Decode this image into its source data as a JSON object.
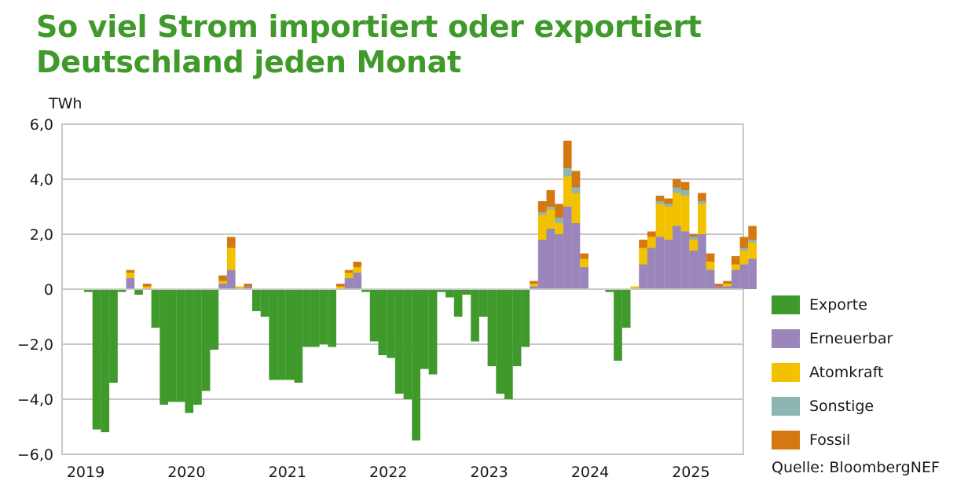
{
  "title_lines": [
    "So viel Strom importiert oder exportiert",
    "Deutschland jeden Monat"
  ],
  "source": "Quelle: BloombergNEF",
  "chart_data": {
    "type": "bar",
    "stacked": true,
    "unit": "TWh",
    "ylim": [
      -6,
      6
    ],
    "yticks": [
      6,
      4,
      2,
      0,
      -2,
      -4,
      -6
    ],
    "ytick_labels": [
      "6,0",
      "4,0",
      "2,0",
      "0",
      "−2,0",
      "−4,0",
      "−6,0"
    ],
    "x_start": "2019-01",
    "years": [
      "2019",
      "2020",
      "2021",
      "2022",
      "2023",
      "2024",
      "2025"
    ],
    "grid": true,
    "legend_position": "right",
    "colors": {
      "Exporte": "#3f9a2b",
      "Erneuerbar": "#9a86bb",
      "Atomkraft": "#f2c200",
      "Sonstige": "#8db5b1",
      "Fossil": "#d47911"
    },
    "series": [
      {
        "name": "Exporte",
        "values": [
          -0.1,
          -5.1,
          -5.2,
          -3.4,
          -0.1,
          0,
          -0.2,
          0,
          -1.4,
          -4.2,
          -4.1,
          -4.1,
          -4.5,
          -4.2,
          -3.7,
          -2.2,
          0,
          0,
          0,
          0,
          -0.8,
          -1.0,
          -3.3,
          -3.3,
          -3.3,
          -3.4,
          -2.1,
          -2.1,
          -2.0,
          -2.1,
          0,
          0,
          0,
          -0.1,
          -1.9,
          -2.4,
          -2.5,
          -3.8,
          -4.0,
          -5.5,
          -2.9,
          -3.1,
          -0.1,
          -0.3,
          -1.0,
          -0.2,
          -1.9,
          -1.0,
          -2.8,
          -3.8,
          -4.0,
          -2.8,
          -2.1,
          0,
          0,
          0,
          0,
          0,
          0,
          0,
          0,
          0,
          -0.1,
          -2.6,
          -1.4,
          0,
          0,
          0,
          0,
          0,
          0,
          0,
          0,
          0,
          0,
          0,
          0,
          0,
          0,
          0,
          0,
          0,
          0,
          0,
          0,
          0
        ]
      },
      {
        "name": "Erneuerbar",
        "values": [
          0,
          0,
          0,
          0,
          0,
          0.4,
          0,
          0,
          0,
          0,
          0,
          0,
          0,
          0,
          0,
          0,
          0.2,
          0.7,
          0,
          0.1,
          0,
          0,
          0,
          0,
          0,
          0,
          0,
          0,
          0,
          0,
          0,
          0.4,
          0.6,
          0,
          0,
          0,
          0,
          0,
          0,
          0,
          0,
          0,
          0,
          0,
          0,
          0,
          0,
          0,
          0,
          0,
          0,
          0,
          0,
          0.1,
          1.8,
          2.2,
          2.0,
          3.0,
          2.4,
          0.8,
          0,
          0,
          0,
          0,
          0,
          0,
          0.9,
          1.5,
          1.9,
          1.8,
          2.3,
          2.1,
          1.4,
          2.0,
          0.7,
          0.1,
          0.1,
          0.7,
          0.9,
          1.1
        ]
      },
      {
        "name": "Atomkraft",
        "values": [
          0,
          0,
          0,
          0,
          0,
          0.2,
          0,
          0.1,
          0,
          0,
          0,
          0,
          0,
          0,
          0,
          0,
          0.1,
          0.8,
          0.1,
          0,
          0,
          0,
          0,
          0,
          0,
          0,
          0,
          0,
          0,
          0,
          0.1,
          0.2,
          0.2,
          0,
          0,
          0,
          0,
          0,
          0,
          0,
          0,
          0,
          0,
          0,
          0,
          0,
          0,
          0,
          0,
          0,
          0,
          0,
          0,
          0.1,
          0.9,
          0.7,
          0.4,
          1.1,
          1.1,
          0.3,
          0,
          0,
          0,
          0,
          0,
          0.1,
          0.6,
          0.4,
          1.2,
          1.2,
          1.2,
          1.3,
          0.4,
          1.1,
          0.3,
          0,
          0.1,
          0.2,
          0.5,
          0.6
        ]
      },
      {
        "name": "Sonstige",
        "values": [
          0,
          0,
          0,
          0,
          0,
          0,
          0,
          0,
          0,
          0,
          0,
          0,
          0,
          0,
          0,
          0,
          0,
          0,
          0,
          0,
          0,
          0,
          0,
          0,
          0,
          0,
          0,
          0,
          0,
          0,
          0,
          0,
          0,
          0,
          0,
          0,
          0,
          0,
          0,
          0,
          0,
          0,
          0,
          0,
          0,
          0,
          0,
          0,
          0,
          0,
          0,
          0,
          0,
          0,
          0.1,
          0.1,
          0.2,
          0.3,
          0.2,
          0,
          0,
          0,
          0,
          0,
          0,
          0,
          0,
          0,
          0.1,
          0.1,
          0.2,
          0.2,
          0.1,
          0.1,
          0,
          0,
          0,
          0,
          0.1,
          0.1
        ]
      },
      {
        "name": "Fossil",
        "values": [
          0,
          0,
          0,
          0,
          0,
          0.1,
          0,
          0.1,
          0,
          0,
          0,
          0,
          0,
          0,
          0,
          0,
          0.2,
          0.4,
          0,
          0.1,
          0,
          0,
          0,
          0,
          0,
          0,
          0,
          0,
          0,
          0,
          0.1,
          0.1,
          0.2,
          0,
          0,
          0,
          0,
          0,
          0,
          0,
          0,
          0,
          0,
          0,
          0,
          0,
          0,
          0,
          0,
          0,
          0,
          0,
          0,
          0.1,
          0.4,
          0.6,
          0.5,
          1.0,
          0.6,
          0.2,
          0,
          0,
          0,
          0,
          0,
          0,
          0.3,
          0.2,
          0.2,
          0.2,
          0.3,
          0.3,
          0.1,
          0.3,
          0.3,
          0.1,
          0.1,
          0.3,
          0.4,
          0.5
        ]
      }
    ]
  }
}
